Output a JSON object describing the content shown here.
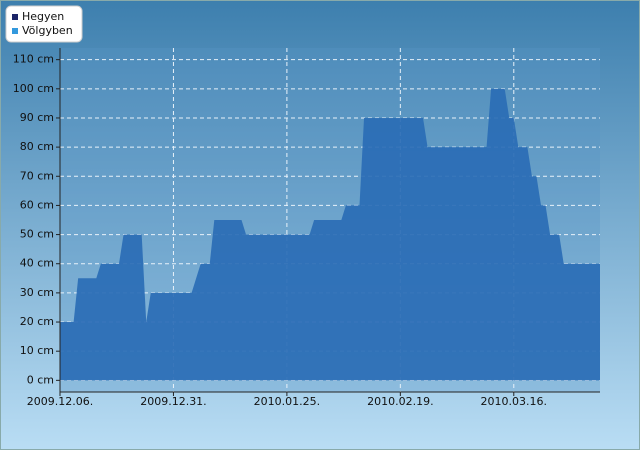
{
  "chart_data": {
    "type": "area",
    "x": [
      "2009-12-06",
      "2009-12-09",
      "2009-12-10",
      "2009-12-14",
      "2009-12-15",
      "2009-12-19",
      "2009-12-20",
      "2009-12-24",
      "2009-12-25",
      "2009-12-26",
      "2010-01-04",
      "2010-01-06",
      "2010-01-08",
      "2010-01-09",
      "2010-01-15",
      "2010-01-16",
      "2010-01-30",
      "2010-01-31",
      "2010-02-06",
      "2010-02-07",
      "2010-02-10",
      "2010-02-11",
      "2010-02-24",
      "2010-02-25",
      "2010-03-10",
      "2010-03-11",
      "2010-03-14",
      "2010-03-15",
      "2010-03-16",
      "2010-03-17",
      "2010-03-19",
      "2010-03-20",
      "2010-03-21",
      "2010-03-22",
      "2010-03-23",
      "2010-03-24",
      "2010-03-26",
      "2010-03-27",
      "2010-04-04"
    ],
    "series": [
      {
        "name": "Hegyen",
        "color": "#1b2468",
        "fill_color": "#2a6db5",
        "values": [
          20,
          20,
          35,
          35,
          40,
          40,
          50,
          50,
          20,
          30,
          30,
          40,
          40,
          55,
          55,
          50,
          50,
          55,
          55,
          60,
          60,
          90,
          90,
          80,
          80,
          100,
          100,
          90,
          90,
          80,
          80,
          70,
          70,
          60,
          60,
          50,
          50,
          40,
          40
        ]
      },
      {
        "name": "Völgyben",
        "color": "#3399dd",
        "fill_color": "#3399dd",
        "values": [
          null,
          null,
          null,
          null,
          null,
          null,
          null,
          null,
          null,
          null,
          null,
          null,
          null,
          null,
          null,
          null,
          null,
          null,
          null,
          null,
          null,
          null,
          null,
          null,
          null,
          null,
          null,
          null,
          null,
          null,
          null,
          null,
          null,
          null,
          null,
          null,
          null,
          null,
          null
        ]
      }
    ],
    "xlim": [
      "2009-12-06",
      "2010-04-04"
    ],
    "xticks": [
      {
        "value": "2009-12-06",
        "label": "2009.12.06."
      },
      {
        "value": "2009-12-31",
        "label": "2009.12.31."
      },
      {
        "value": "2010-01-25",
        "label": "2010.01.25."
      },
      {
        "value": "2010-02-19",
        "label": "2010.02.19."
      },
      {
        "value": "2010-03-16",
        "label": "2010.03.16."
      }
    ],
    "ylim": [
      -4,
      114
    ],
    "yticks": [
      {
        "value": 0,
        "label": "0 cm"
      },
      {
        "value": 10,
        "label": "10 cm"
      },
      {
        "value": 20,
        "label": "20 cm"
      },
      {
        "value": 30,
        "label": "30 cm"
      },
      {
        "value": 40,
        "label": "40 cm"
      },
      {
        "value": 50,
        "label": "50 cm"
      },
      {
        "value": 60,
        "label": "60 cm"
      },
      {
        "value": 70,
        "label": "70 cm"
      },
      {
        "value": 80,
        "label": "80 cm"
      },
      {
        "value": 90,
        "label": "90 cm"
      },
      {
        "value": 100,
        "label": "100 cm"
      },
      {
        "value": 110,
        "label": "110 cm"
      }
    ],
    "grid": true,
    "legend": "top-left"
  }
}
